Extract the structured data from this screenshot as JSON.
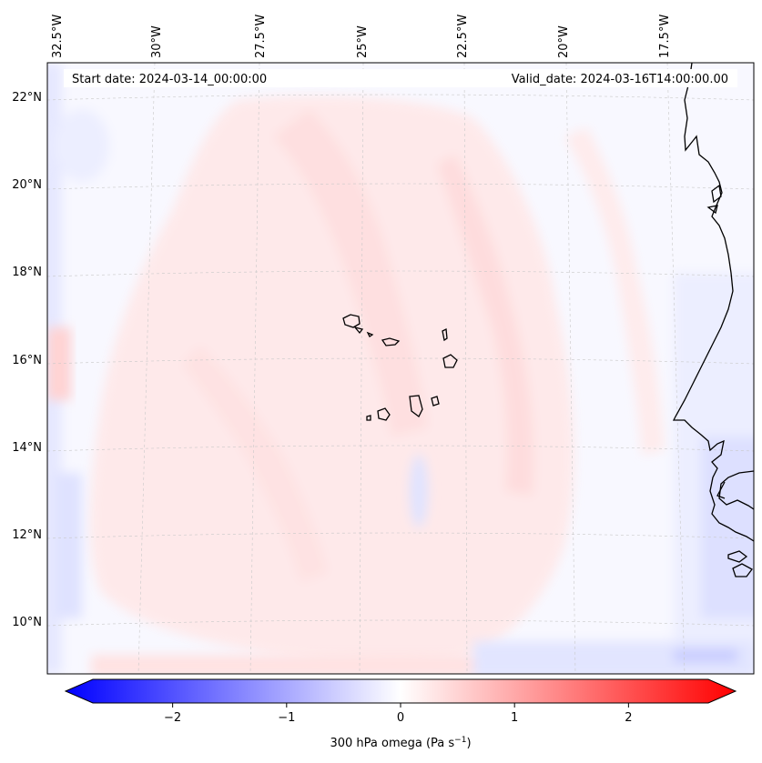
{
  "figure": {
    "start_date_text": "Start date: 2024-03-14_00:00:00",
    "valid_date_text": "Valid_date: 2024-03-16T14:00:00.00"
  },
  "map": {
    "lon_labels": [
      "32.5°W",
      "30°W",
      "27.5°W",
      "25°W",
      "22.5°W",
      "20°W",
      "17.5°W"
    ],
    "lat_labels": [
      "22°N",
      "20°N",
      "18°N",
      "16°N",
      "14°N",
      "12°N",
      "10°N"
    ],
    "gridlines": true,
    "coastline_color": "#000000",
    "features": [
      "Cape Verde islands",
      "West African coastline"
    ]
  },
  "colorbar": {
    "label_main": "300 hPa omega (Pa s",
    "label_sup": "−1",
    "label_end": ")",
    "ticks": [
      "−2",
      "−1",
      "0",
      "1",
      "2"
    ],
    "min": -2.7,
    "max": 2.7,
    "colormap": "bwr",
    "extend": "both",
    "colors": {
      "negative": "#0000ff",
      "zero": "#ffffff",
      "positive": "#ff0000"
    }
  }
}
